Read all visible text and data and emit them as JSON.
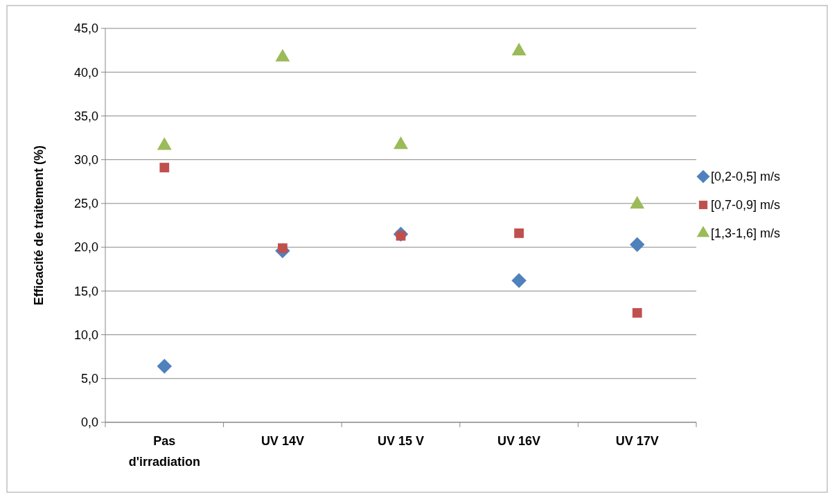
{
  "chart_data": {
    "type": "scatter",
    "ylabel": "Efficacité de traitement (%)",
    "categories": [
      "Pas d'irradiation",
      "UV 14V",
      "UV 15 V",
      "UV 16V",
      "UV 17V"
    ],
    "series": [
      {
        "name": "[0,2-0,5] m/s",
        "color": "#4f81bd",
        "marker": "diamond",
        "values": [
          6.4,
          19.6,
          21.5,
          16.2,
          20.3
        ]
      },
      {
        "name": "[0,7-0,9] m/s",
        "color": "#c0504d",
        "marker": "square",
        "values": [
          29.1,
          19.9,
          21.3,
          21.6,
          12.5
        ]
      },
      {
        "name": "[1,3-1,6] m/s",
        "color": "#9bbb59",
        "marker": "triangle",
        "values": [
          31.6,
          41.7,
          31.7,
          42.4,
          24.9
        ]
      }
    ],
    "ylim": [
      0,
      45
    ],
    "yticks": [
      {
        "value": 0,
        "label": "0,0"
      },
      {
        "value": 5,
        "label": "5,0"
      },
      {
        "value": 10,
        "label": "10,0"
      },
      {
        "value": 15,
        "label": "15,0"
      },
      {
        "value": 20,
        "label": "20,0"
      },
      {
        "value": 25,
        "label": "25,0"
      },
      {
        "value": 30,
        "label": "30,0"
      },
      {
        "value": 35,
        "label": "35,0"
      },
      {
        "value": 40,
        "label": "40,0"
      },
      {
        "value": 45,
        "label": "45,0"
      }
    ],
    "grid": "y",
    "legend": "right"
  }
}
